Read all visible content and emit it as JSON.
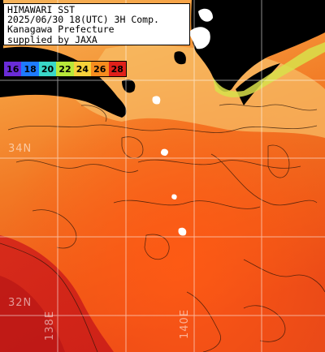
{
  "title": {
    "line1": "HIMAWARI SST",
    "line2": "2025/06/30 18(UTC) 3H Comp.",
    "line3": "Kanagawa Prefecture",
    "line4": "supplied by JAXA"
  },
  "legend": {
    "labels": [
      "16",
      "18",
      "20",
      "22",
      "24",
      "26",
      "28"
    ],
    "colors": [
      "#6a2cd8",
      "#1e7bff",
      "#39d8c8",
      "#b8e83a",
      "#f6d13a",
      "#f68c1e",
      "#e0201a"
    ]
  },
  "grid": {
    "lat_labels": [
      "34N",
      "32N"
    ],
    "lon_labels": [
      "138E",
      "140E"
    ]
  }
}
